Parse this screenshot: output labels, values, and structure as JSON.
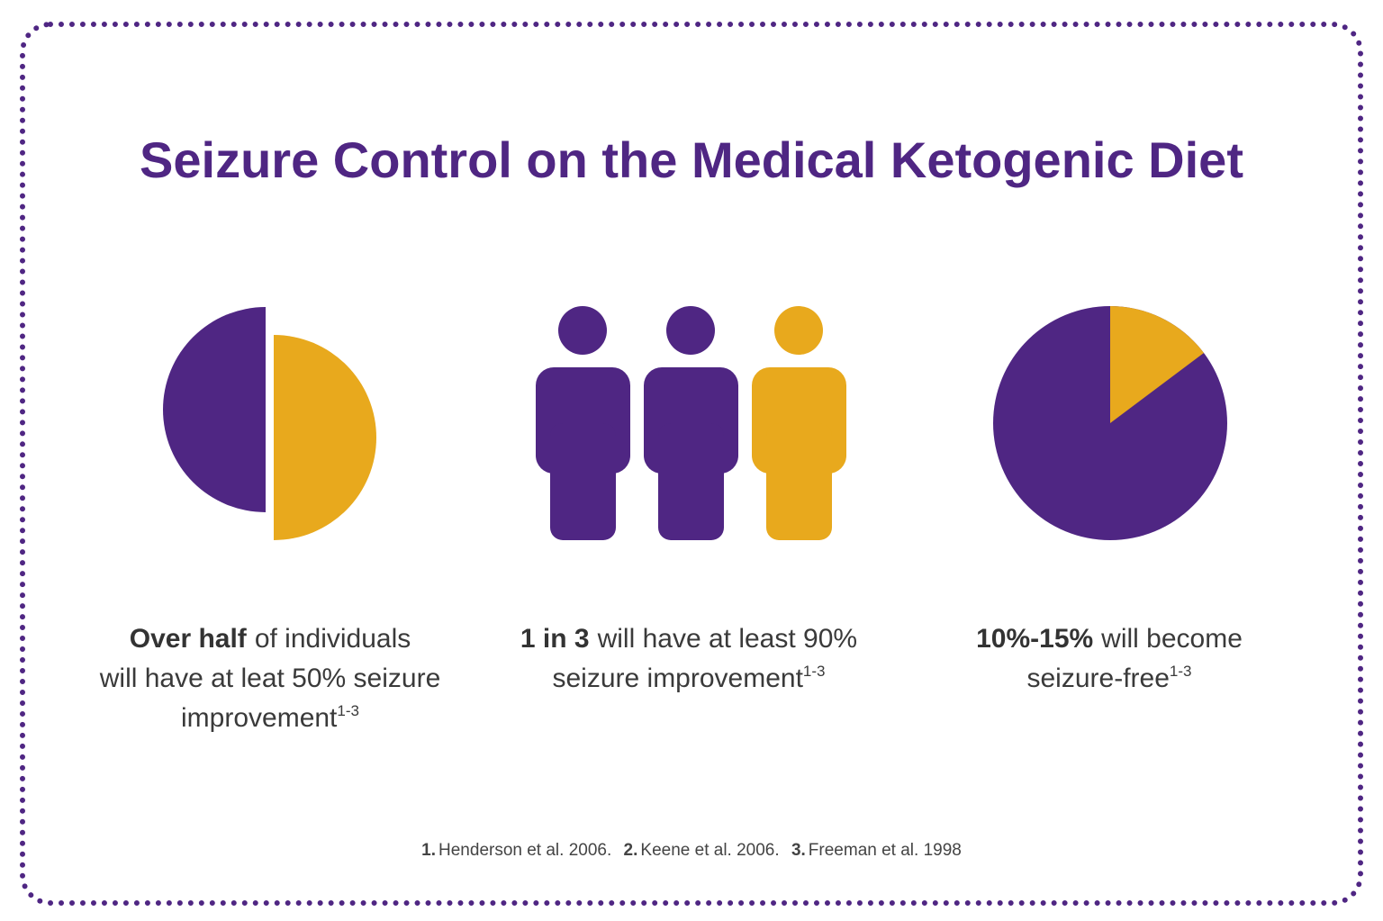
{
  "header": {
    "title": "Seizure Control on the Medical Ketogenic Diet"
  },
  "panels": [
    {
      "lines": [
        {
          "bold": "Over half",
          "text": "of individuals"
        },
        {
          "text": "will have at leat 50% seizure"
        },
        {
          "text": "improvement",
          "sup": "1-3"
        }
      ]
    },
    {
      "lines": [
        {
          "bold": "1 in 3",
          "text": "will have at least 90%"
        },
        {
          "text": "seizure improvement",
          "sup": "1-3"
        }
      ]
    },
    {
      "lines": [
        {
          "bold": "10%-15%",
          "text": "will become"
        },
        {
          "text": "seizure-free",
          "sup": "1-3"
        }
      ]
    }
  ],
  "references": [
    {
      "number": "1.",
      "text": "Henderson et al. 2006."
    },
    {
      "number": "2.",
      "text": "Keene et al. 2006."
    },
    {
      "number": "3.",
      "text": "Freeman et al. 1998"
    }
  ]
}
